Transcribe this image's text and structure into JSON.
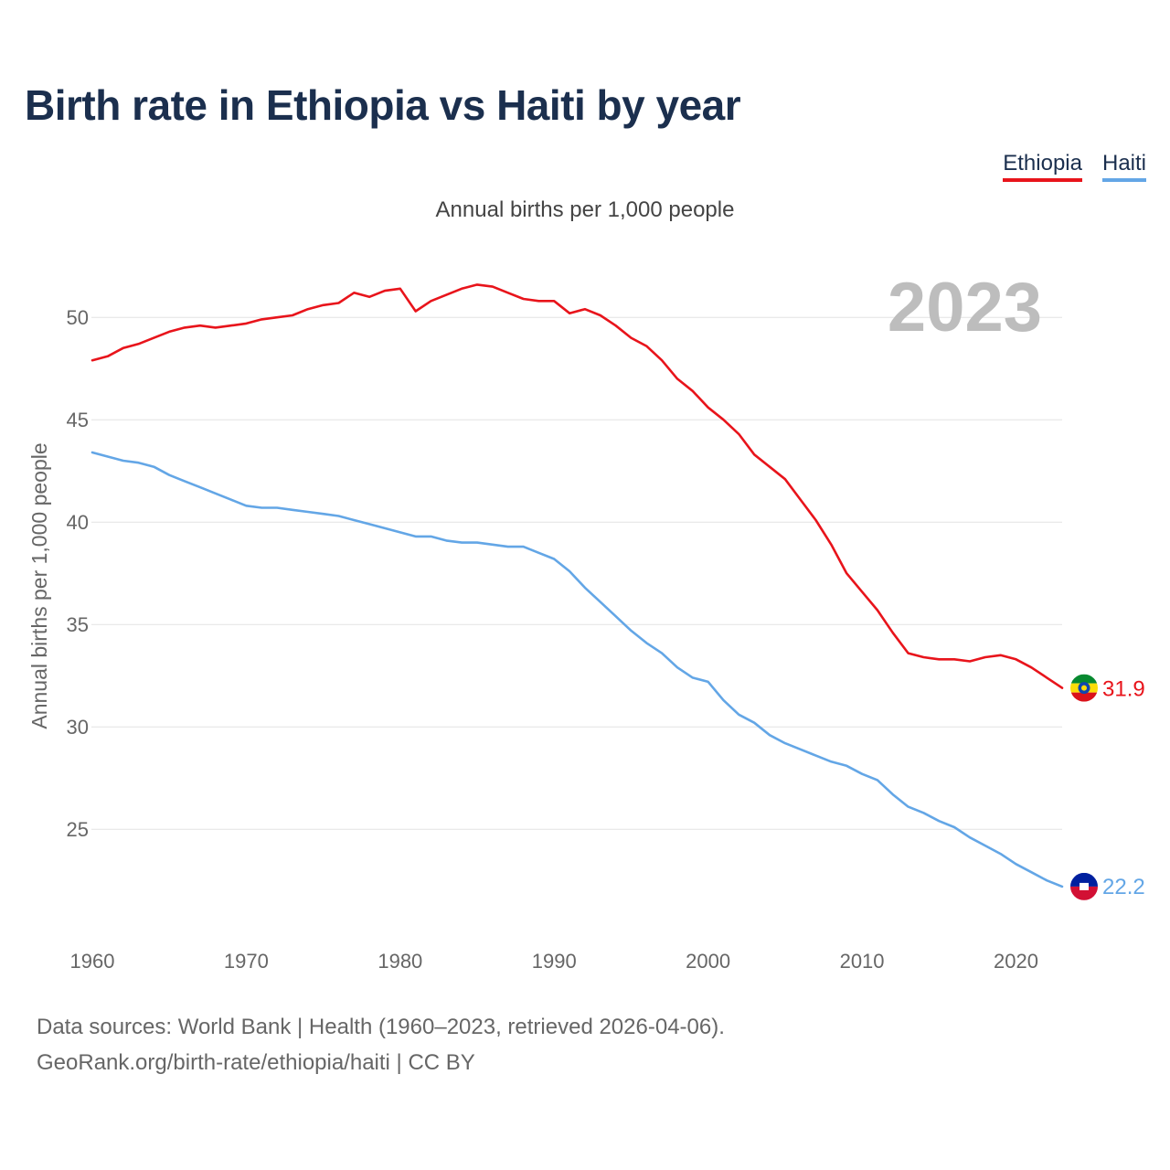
{
  "title": "Birth rate in Ethiopia vs Haiti by year",
  "subtitle": "Annual births per 1,000 people",
  "year_watermark": "2023",
  "footer": {
    "line1": "Data sources: World Bank | Health (1960–2023, retrieved 2026-04-06).",
    "line2": "GeoRank.org/birth-rate/ethiopia/haiti | CC BY"
  },
  "chart_data": {
    "type": "line",
    "title": "Birth rate in Ethiopia vs Haiti by year",
    "ylabel": "Annual births per 1,000 people",
    "xlabel": "",
    "xlim": [
      1960,
      2023
    ],
    "ylim": [
      20.5,
      53
    ],
    "x_ticks": [
      1960,
      1970,
      1980,
      1990,
      2000,
      2010,
      2020
    ],
    "y_ticks": [
      25,
      30,
      35,
      40,
      45,
      50
    ],
    "grid": true,
    "legend": "top-right",
    "x": [
      1960,
      1961,
      1962,
      1963,
      1964,
      1965,
      1966,
      1967,
      1968,
      1969,
      1970,
      1971,
      1972,
      1973,
      1974,
      1975,
      1976,
      1977,
      1978,
      1979,
      1980,
      1981,
      1982,
      1983,
      1984,
      1985,
      1986,
      1987,
      1988,
      1989,
      1990,
      1991,
      1992,
      1993,
      1994,
      1995,
      1996,
      1997,
      1998,
      1999,
      2000,
      2001,
      2002,
      2003,
      2004,
      2005,
      2006,
      2007,
      2008,
      2009,
      2010,
      2011,
      2012,
      2013,
      2014,
      2015,
      2016,
      2017,
      2018,
      2019,
      2020,
      2021,
      2022,
      2023
    ],
    "series": [
      {
        "name": "Ethiopia",
        "color": "#e8141b",
        "last_label": "31.9",
        "values": [
          47.9,
          48.1,
          48.5,
          48.7,
          49.0,
          49.3,
          49.5,
          49.6,
          49.5,
          49.6,
          49.7,
          49.9,
          50.0,
          50.1,
          50.4,
          50.6,
          50.7,
          51.2,
          51.0,
          51.3,
          51.4,
          50.3,
          50.8,
          51.1,
          51.4,
          51.6,
          51.5,
          51.2,
          50.9,
          50.8,
          50.8,
          50.2,
          50.4,
          50.1,
          49.6,
          49.0,
          48.6,
          47.9,
          47.0,
          46.4,
          45.6,
          45.0,
          44.3,
          43.3,
          42.7,
          42.1,
          41.1,
          40.1,
          38.9,
          37.5,
          36.6,
          35.7,
          34.6,
          33.6,
          33.4,
          33.3,
          33.3,
          33.2,
          33.4,
          33.5,
          33.3,
          32.9,
          32.4,
          31.9
        ]
      },
      {
        "name": "Haiti",
        "color": "#63a6e6",
        "last_label": "22.2",
        "values": [
          43.4,
          43.2,
          43.0,
          42.9,
          42.7,
          42.3,
          42.0,
          41.7,
          41.4,
          41.1,
          40.8,
          40.7,
          40.7,
          40.6,
          40.5,
          40.4,
          40.3,
          40.1,
          39.9,
          39.7,
          39.5,
          39.3,
          39.3,
          39.1,
          39.0,
          39.0,
          38.9,
          38.8,
          38.8,
          38.5,
          38.2,
          37.6,
          36.8,
          36.1,
          35.4,
          34.7,
          34.1,
          33.6,
          32.9,
          32.4,
          32.2,
          31.3,
          30.6,
          30.2,
          29.6,
          29.2,
          28.9,
          28.6,
          28.3,
          28.1,
          27.7,
          27.4,
          26.7,
          26.1,
          25.8,
          25.4,
          25.1,
          24.6,
          24.2,
          23.8,
          23.3,
          22.9,
          22.5,
          22.2
        ]
      }
    ]
  }
}
